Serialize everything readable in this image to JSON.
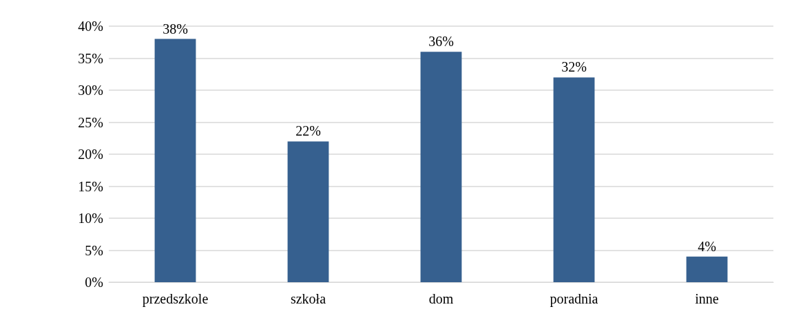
{
  "chart_data": {
    "type": "bar",
    "categories": [
      "przedszkole",
      "szkoła",
      "dom",
      "poradnia",
      "inne"
    ],
    "values": [
      38,
      22,
      36,
      32,
      4
    ],
    "value_labels": [
      "38%",
      "22%",
      "36%",
      "32%",
      "4%"
    ],
    "color": "#36608f",
    "ylim": [
      0,
      40
    ],
    "yticks": [
      {
        "value": 0,
        "label": "0%"
      },
      {
        "value": 5,
        "label": "5%"
      },
      {
        "value": 10,
        "label": "10%"
      },
      {
        "value": 15,
        "label": "15%"
      },
      {
        "value": 20,
        "label": "20%"
      },
      {
        "value": 25,
        "label": "25%"
      },
      {
        "value": 30,
        "label": "30%"
      },
      {
        "value": 35,
        "label": "35%"
      },
      {
        "value": 40,
        "label": "40%"
      }
    ],
    "grid": true
  }
}
